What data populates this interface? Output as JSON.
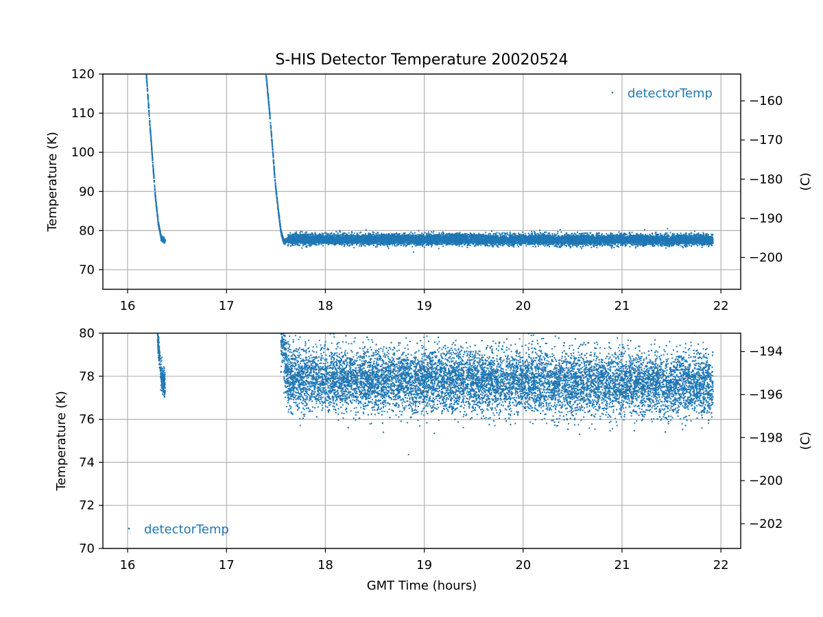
{
  "chart_data": [
    {
      "type": "scatter",
      "title": "S-HIS Detector Temperature 20020524",
      "xlabel": "",
      "ylabel": "Temperature (K)",
      "ylabel_right": "(C)",
      "xlim": [
        15.75,
        22.2
      ],
      "ylim": [
        65,
        120
      ],
      "ylim_right": [
        -208.15,
        -153.15
      ],
      "x_ticks": [
        "16",
        "17",
        "18",
        "19",
        "20",
        "21",
        "22"
      ],
      "y_ticks": [
        "70",
        "80",
        "90",
        "100",
        "110",
        "120"
      ],
      "y_ticks_right": [
        "−160",
        "−170",
        "−180",
        "−190",
        "−200"
      ],
      "grid": true,
      "legend_position": "top-right",
      "color": "#1f77b4",
      "series": [
        {
          "name": "detectorTemp",
          "segments": [
            {
              "x": [
                16.19,
                16.22,
                16.25,
                16.28,
                16.31,
                16.34,
                16.37,
                16.38
              ],
              "y": [
                120,
                109,
                99,
                89,
                82,
                78,
                77.5,
                77.5
              ],
              "spread": 0.6
            },
            {
              "x": [
                17.4,
                17.43,
                17.46,
                17.49,
                17.52,
                17.55,
                17.58,
                17.62
              ],
              "y": [
                120,
                112,
                103,
                93,
                86,
                80,
                77,
                77.8
              ],
              "spread": 0.6
            },
            {
              "x": [
                17.62,
                21.92
              ],
              "y": [
                77.8,
                77.6
              ],
              "spread": 1.5
            }
          ]
        }
      ]
    },
    {
      "type": "scatter",
      "title": "",
      "xlabel": "GMT Time (hours)",
      "ylabel": "Temperature (K)",
      "ylabel_right": "(C)",
      "xlim": [
        15.75,
        22.2
      ],
      "ylim": [
        70,
        80
      ],
      "ylim_right": [
        -203.15,
        -193.15
      ],
      "x_ticks": [
        "16",
        "17",
        "18",
        "19",
        "20",
        "21",
        "22"
      ],
      "y_ticks": [
        "70",
        "72",
        "74",
        "76",
        "78",
        "80"
      ],
      "y_ticks_right": [
        "−194",
        "−196",
        "−198",
        "−200",
        "−202"
      ],
      "grid": true,
      "legend_position": "bottom-left",
      "color": "#1f77b4",
      "series": [
        {
          "name": "detectorTemp",
          "segments": [
            {
              "x": [
                16.3,
                16.34,
                16.38
              ],
              "y": [
                80,
                78,
                77.5
              ],
              "spread": 0.7
            },
            {
              "x": [
                17.55,
                17.62,
                21.92
              ],
              "y": [
                80,
                77.9,
                77.6
              ],
              "spread": 1.6
            }
          ]
        }
      ]
    }
  ]
}
